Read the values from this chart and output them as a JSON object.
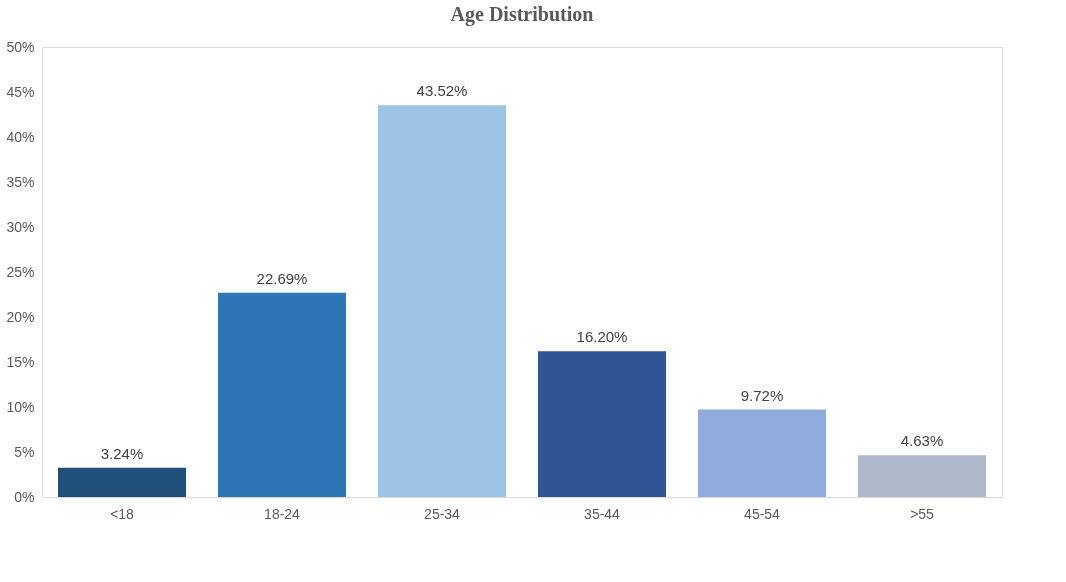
{
  "chart_data": {
    "type": "bar",
    "title": "Age Distribution",
    "categories": [
      "<18",
      "18-24",
      "25-34",
      "35-44",
      "45-54",
      ">55"
    ],
    "values": [
      3.24,
      22.69,
      43.52,
      16.2,
      9.72,
      4.63
    ],
    "colors": [
      "#1f4e79",
      "#2e75b6",
      "#9dc3e6",
      "#2f5597",
      "#8faadc",
      "#adb9ca"
    ],
    "value_labels": [
      "3.24%",
      "22.69%",
      "43.52%",
      "16.20%",
      "9.72%",
      "4.63%"
    ],
    "ylim": [
      0,
      50
    ],
    "yticks": [
      {
        "value": 0,
        "label": "0%"
      },
      {
        "value": 5,
        "label": "5%"
      },
      {
        "value": 10,
        "label": "10%"
      },
      {
        "value": 15,
        "label": "15%"
      },
      {
        "value": 20,
        "label": "20%"
      },
      {
        "value": 25,
        "label": "25%"
      },
      {
        "value": 30,
        "label": "30%"
      },
      {
        "value": 35,
        "label": "35%"
      },
      {
        "value": 40,
        "label": "40%"
      },
      {
        "value": 45,
        "label": "45%"
      },
      {
        "value": 50,
        "label": "50%"
      }
    ],
    "grid": false,
    "legend": false
  }
}
